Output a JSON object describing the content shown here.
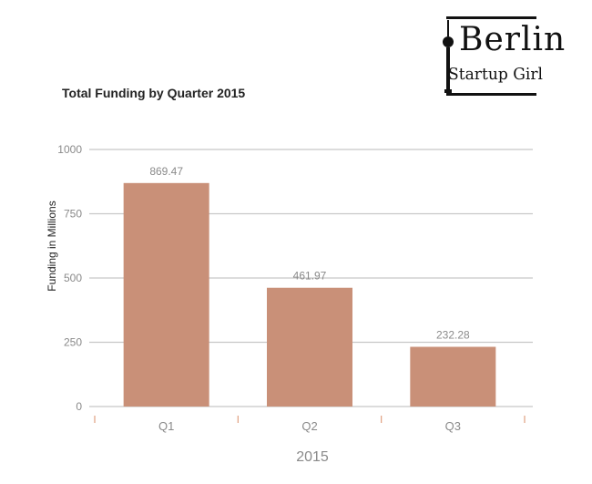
{
  "logo": {
    "line1": "Berlin",
    "line2": "Startup Girl",
    "icon": "tv-tower-icon"
  },
  "colors": {
    "bar": "#c99078",
    "grid": "#c8c8c8",
    "axis_tick_mark": "#e0a080"
  },
  "chart_data": {
    "type": "bar",
    "title": "Total Funding by Quarter 2015",
    "xlabel": "2015",
    "ylabel": "Funding in Millions",
    "categories": [
      "Q1",
      "Q2",
      "Q3"
    ],
    "values": [
      869.47,
      461.97,
      232.28
    ],
    "value_labels": [
      "869.47",
      "461.97",
      "232.28"
    ],
    "ylim": [
      0,
      1000
    ],
    "yticks": [
      0,
      250,
      500,
      750,
      1000
    ],
    "grid": true,
    "legend": "none"
  }
}
